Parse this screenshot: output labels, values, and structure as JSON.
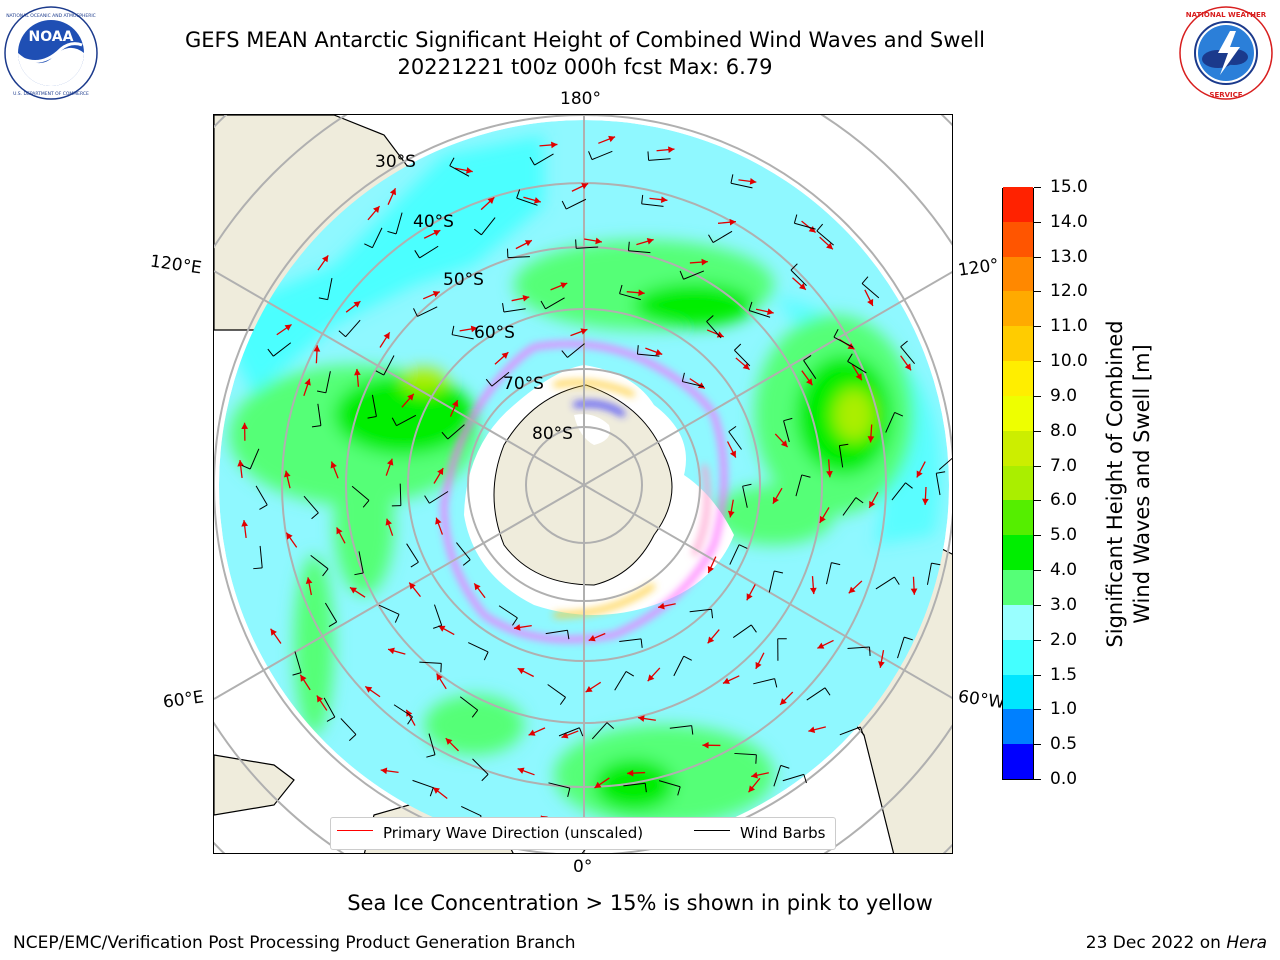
{
  "title": {
    "line1": "GEFS MEAN Antarctic Significant Height of Combined Wind Waves and Swell",
    "line2": "20221221 t00z 000h fcst   Max: 6.79"
  },
  "logos": {
    "left": {
      "name": "NOAA",
      "text": "NOAA",
      "ring_text": "NATIONAL OCEANIC AND ATMOSPHERIC ADMINISTRATION · U.S. DEPARTMENT OF COMMERCE"
    },
    "right": {
      "name": "National Weather Service",
      "ring_text": "NATIONAL WEATHER SERVICE"
    }
  },
  "map": {
    "projection": "south-polar-stereographic",
    "longitude_labels": {
      "top": "180°",
      "bottom": "0°",
      "upper_left": "120°E",
      "lower_left": "60°E",
      "upper_right": "120°",
      "lower_right": "60°W"
    },
    "latitude_labels": [
      "30°S",
      "40°S",
      "50°S",
      "60°S",
      "70°S",
      "80°S"
    ],
    "colors": {
      "land": "#efecdc",
      "ice": "#ffffff",
      "ice_edge": [
        "#ff66ff",
        "#ff99cc",
        "#ffcc33",
        "#3333ff"
      ],
      "grid": "#b0b0b0",
      "arrow": "#ff0000",
      "barb": "#000000"
    }
  },
  "legend": {
    "items": [
      {
        "label": "Primary Wave Direction (unscaled)",
        "color": "#ff0000"
      },
      {
        "label": "Wind Barbs",
        "color": "#000000"
      }
    ]
  },
  "colorbar": {
    "label_line1": "Significant Height of Combined",
    "label_line2": "Wind Waves and Swell [m]",
    "ticks": [
      "0.0",
      "0.5",
      "1.0",
      "1.5",
      "2.0",
      "3.0",
      "4.0",
      "5.0",
      "6.0",
      "7.0",
      "8.0",
      "9.0",
      "10.0",
      "11.0",
      "12.0",
      "13.0",
      "14.0",
      "15.0"
    ],
    "colors": [
      "#0000ff",
      "#0080ff",
      "#00e6ff",
      "#44ffff",
      "#99ffff",
      "#55ff77",
      "#00ee00",
      "#55ee00",
      "#aaee00",
      "#ccee00",
      "#eeff00",
      "#ffee00",
      "#ffcc00",
      "#ffaa00",
      "#ff8800",
      "#ff5500",
      "#ff2200"
    ]
  },
  "footnote": "Sea Ice Concentration > 15% is shown in pink to yellow",
  "credit_left": "NCEP/EMC/Verification Post Processing Product Generation Branch",
  "credit_right_date": "23 Dec 2022 on",
  "credit_right_host": "Hera"
}
